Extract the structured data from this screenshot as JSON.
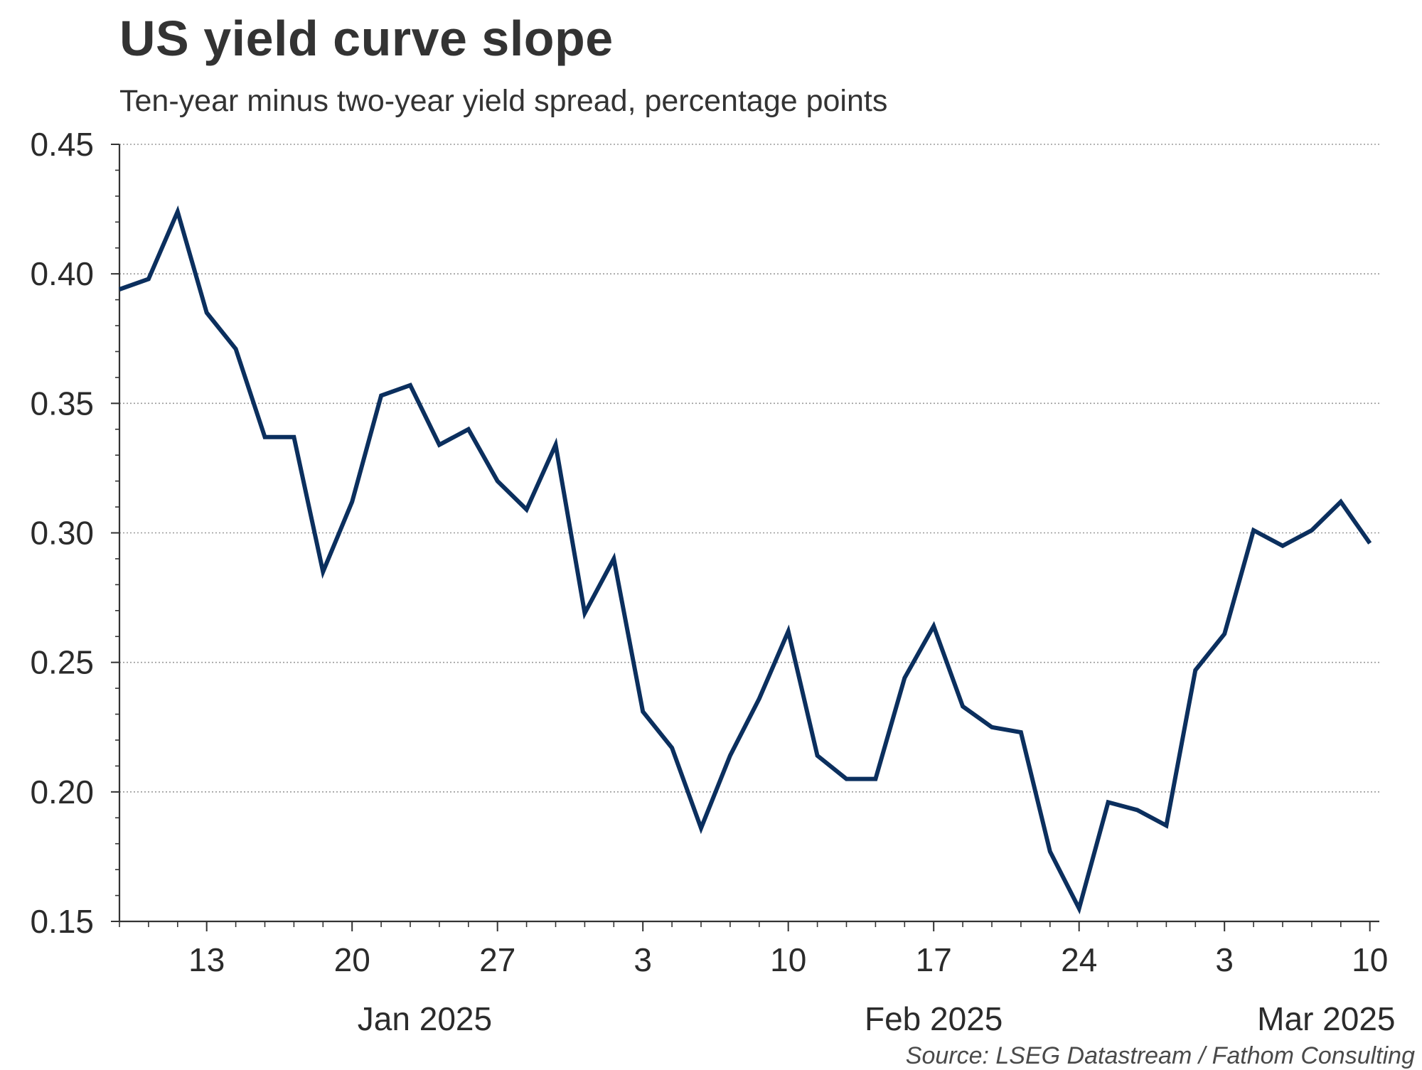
{
  "chart_data": {
    "type": "line",
    "title": "US yield curve slope",
    "subtitle": "Ten-year minus two-year yield spread, percentage points",
    "source": "Source: LSEG Datastream / Fathom Consulting",
    "ylim": [
      0.15,
      0.45
    ],
    "y_ticks": [
      "0.45",
      "0.40",
      "0.35",
      "0.30",
      "0.25",
      "0.20",
      "0.15"
    ],
    "x_ticks": [
      "13",
      "20",
      "27",
      "3",
      "10",
      "17",
      "24",
      "3",
      "10"
    ],
    "x_tick_days": [
      3,
      8,
      13,
      18,
      23,
      28,
      33,
      38,
      43
    ],
    "months": [
      {
        "label": "Jan 2025",
        "center_day": 10.5
      },
      {
        "label": "Feb 2025",
        "center_day": 28
      },
      {
        "label": "Mar 2025",
        "center_day": 41.5
      }
    ],
    "grid": true,
    "line_color": "#0b2f5e",
    "series": [
      {
        "name": "10y-2y spread",
        "values": [
          0.394,
          0.398,
          0.424,
          0.385,
          0.371,
          0.337,
          0.337,
          0.285,
          0.312,
          0.353,
          0.357,
          0.334,
          0.34,
          0.32,
          0.309,
          0.334,
          0.269,
          0.29,
          0.231,
          0.217,
          0.186,
          0.214,
          0.236,
          0.262,
          0.214,
          0.205,
          0.205,
          0.244,
          0.264,
          0.233,
          0.225,
          0.223,
          0.177,
          0.155,
          0.196,
          0.193,
          0.187,
          0.247,
          0.261,
          0.301,
          0.295,
          0.301,
          0.312,
          0.296
        ]
      }
    ]
  }
}
